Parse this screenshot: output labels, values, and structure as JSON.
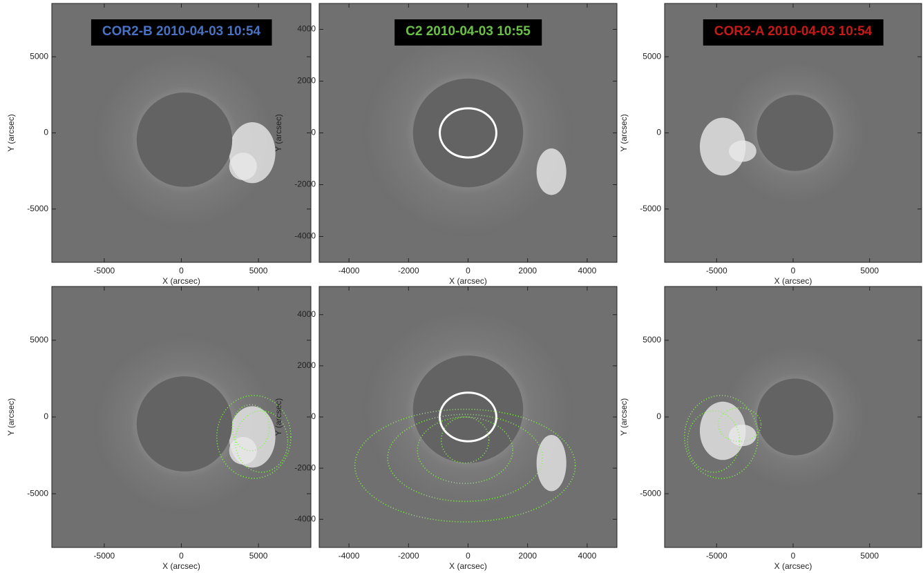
{
  "chart_data": [
    {
      "type": "image",
      "title": "COR2-B 2010-04-03 10:54",
      "title_color": "#4a72c4",
      "xlabel": "X (arcsec)",
      "ylabel": "Y (arcsec)",
      "xlim": [
        -8400,
        8400
      ],
      "ylim": [
        -8500,
        8500
      ],
      "xticks": [
        -5000,
        0,
        5000
      ],
      "yticks": [
        -5000,
        0,
        5000
      ]
    },
    {
      "type": "image",
      "title": "C2 2010-04-03 10:55",
      "title_color": "#6cc04a",
      "xlabel": "X (arcsec)",
      "ylabel": "Y (arcsec)",
      "xlim": [
        -5000,
        5000
      ],
      "ylim": [
        -5000,
        5000
      ],
      "xticks": [
        -4000,
        -2000,
        0,
        2000,
        4000
      ],
      "yticks": [
        -4000,
        -2000,
        0,
        2000,
        4000
      ]
    },
    {
      "type": "image",
      "title": "COR2-A 2010-04-03 10:54",
      "title_color": "#c41a1a",
      "xlabel": "X (arcsec)",
      "ylabel": "Y (arcsec)",
      "xlim": [
        -8400,
        8400
      ],
      "ylim": [
        -8500,
        8500
      ],
      "xticks": [
        -5000,
        0,
        5000
      ],
      "yticks": [
        -5000,
        0,
        5000
      ]
    },
    {
      "type": "image",
      "xlabel": "X (arcsec)",
      "ylabel": "Y (arcsec)",
      "xlim": [
        -8400,
        8400
      ],
      "ylim": [
        -8500,
        8500
      ],
      "xticks": [
        -5000,
        0,
        5000
      ],
      "yticks": [
        -5000,
        0,
        5000
      ]
    },
    {
      "type": "image",
      "xlabel": "X (arcsec)",
      "ylabel": "Y (arcsec)",
      "xlim": [
        -5000,
        5000
      ],
      "ylim": [
        -5100,
        5100
      ],
      "xticks": [
        -4000,
        -2000,
        0,
        2000,
        4000
      ],
      "yticks": [
        -4000,
        -2000,
        0,
        2000,
        4000
      ]
    },
    {
      "type": "image",
      "xlabel": "X (arcsec)",
      "ylabel": "Y (arcsec)",
      "xlim": [
        -8400,
        8400
      ],
      "ylim": [
        -8500,
        8500
      ],
      "xticks": [
        -5000,
        0,
        5000
      ],
      "yticks": [
        -5000,
        0,
        5000
      ]
    }
  ]
}
